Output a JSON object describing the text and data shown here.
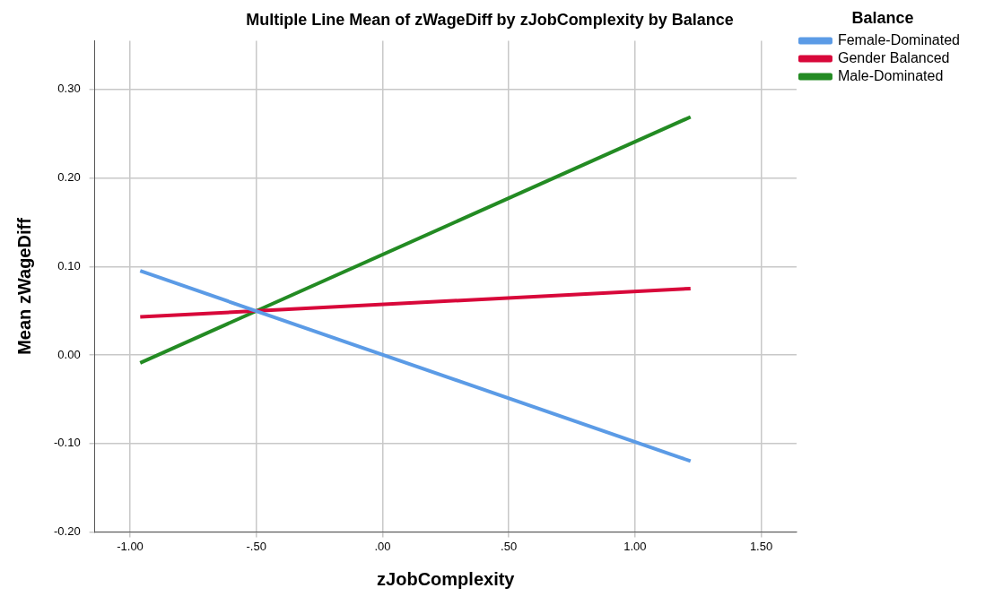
{
  "chart_data": {
    "type": "line",
    "title": "Multiple Line Mean of zWageDiff by zJobComplexity by Balance",
    "xlabel": "zJobComplexity",
    "ylabel": "Mean zWageDiff",
    "legend_title": "Balance",
    "legend": "top right",
    "grid": true,
    "marker": "none",
    "line_style": "solid",
    "x": [
      -0.96,
      1.22
    ],
    "xlim": [
      -1.14,
      1.64
    ],
    "xticks": [
      {
        "value": -1,
        "label": "-1.00"
      },
      {
        "value": -0.5,
        "label": "-.50"
      },
      {
        "value": 0,
        "label": ".00"
      },
      {
        "value": 0.5,
        "label": ".50"
      },
      {
        "value": 1,
        "label": "1.00"
      },
      {
        "value": 1.5,
        "label": "1.50"
      }
    ],
    "ylim": [
      -0.2,
      0.355
    ],
    "yticks": [
      {
        "value": -0.2,
        "label": "-0.20"
      },
      {
        "value": -0.1,
        "label": "-0.10"
      },
      {
        "value": 0,
        "label": "0.00"
      },
      {
        "value": 0.1,
        "label": "0.10"
      },
      {
        "value": 0.2,
        "label": "0.20"
      },
      {
        "value": 0.3,
        "label": "0.30"
      }
    ],
    "series": [
      {
        "name": "Female-Dominated",
        "color": "#5b9be6",
        "values": [
          0.095,
          -0.12
        ]
      },
      {
        "name": "Gender Balanced",
        "color": "#d8083a",
        "values": [
          0.043,
          0.075
        ]
      },
      {
        "name": "Male-Dominated",
        "color": "#238b23",
        "values": [
          -0.009,
          0.269
        ]
      }
    ]
  }
}
